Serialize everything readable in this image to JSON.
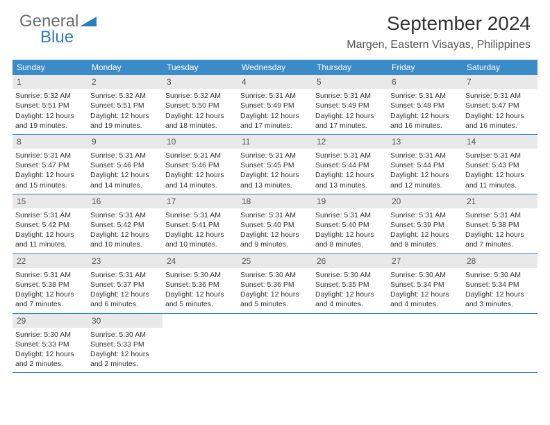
{
  "colors": {
    "header_blue": "#3b8bc9",
    "border_blue": "#2d7cc0",
    "daynum_bg": "#e9e9e9",
    "logo_gray": "#6b6b6b",
    "logo_blue": "#2d7cc0"
  },
  "logo": {
    "line1": "General",
    "line2": "Blue"
  },
  "title": {
    "month": "September 2024",
    "location": "Margen, Eastern Visayas, Philippines"
  },
  "weekdays": [
    "Sunday",
    "Monday",
    "Tuesday",
    "Wednesday",
    "Thursday",
    "Friday",
    "Saturday"
  ],
  "layout": {
    "first_weekday_index": 0,
    "days_in_month": 30,
    "rows": 5
  },
  "days": [
    {
      "n": 1,
      "sunrise": "5:32 AM",
      "sunset": "5:51 PM",
      "daylight": "12 hours and 19 minutes."
    },
    {
      "n": 2,
      "sunrise": "5:32 AM",
      "sunset": "5:51 PM",
      "daylight": "12 hours and 19 minutes."
    },
    {
      "n": 3,
      "sunrise": "5:32 AM",
      "sunset": "5:50 PM",
      "daylight": "12 hours and 18 minutes."
    },
    {
      "n": 4,
      "sunrise": "5:31 AM",
      "sunset": "5:49 PM",
      "daylight": "12 hours and 17 minutes."
    },
    {
      "n": 5,
      "sunrise": "5:31 AM",
      "sunset": "5:49 PM",
      "daylight": "12 hours and 17 minutes."
    },
    {
      "n": 6,
      "sunrise": "5:31 AM",
      "sunset": "5:48 PM",
      "daylight": "12 hours and 16 minutes."
    },
    {
      "n": 7,
      "sunrise": "5:31 AM",
      "sunset": "5:47 PM",
      "daylight": "12 hours and 16 minutes."
    },
    {
      "n": 8,
      "sunrise": "5:31 AM",
      "sunset": "5:47 PM",
      "daylight": "12 hours and 15 minutes."
    },
    {
      "n": 9,
      "sunrise": "5:31 AM",
      "sunset": "5:46 PM",
      "daylight": "12 hours and 14 minutes."
    },
    {
      "n": 10,
      "sunrise": "5:31 AM",
      "sunset": "5:46 PM",
      "daylight": "12 hours and 14 minutes."
    },
    {
      "n": 11,
      "sunrise": "5:31 AM",
      "sunset": "5:45 PM",
      "daylight": "12 hours and 13 minutes."
    },
    {
      "n": 12,
      "sunrise": "5:31 AM",
      "sunset": "5:44 PM",
      "daylight": "12 hours and 13 minutes."
    },
    {
      "n": 13,
      "sunrise": "5:31 AM",
      "sunset": "5:44 PM",
      "daylight": "12 hours and 12 minutes."
    },
    {
      "n": 14,
      "sunrise": "5:31 AM",
      "sunset": "5:43 PM",
      "daylight": "12 hours and 11 minutes."
    },
    {
      "n": 15,
      "sunrise": "5:31 AM",
      "sunset": "5:42 PM",
      "daylight": "12 hours and 11 minutes."
    },
    {
      "n": 16,
      "sunrise": "5:31 AM",
      "sunset": "5:42 PM",
      "daylight": "12 hours and 10 minutes."
    },
    {
      "n": 17,
      "sunrise": "5:31 AM",
      "sunset": "5:41 PM",
      "daylight": "12 hours and 10 minutes."
    },
    {
      "n": 18,
      "sunrise": "5:31 AM",
      "sunset": "5:40 PM",
      "daylight": "12 hours and 9 minutes."
    },
    {
      "n": 19,
      "sunrise": "5:31 AM",
      "sunset": "5:40 PM",
      "daylight": "12 hours and 8 minutes."
    },
    {
      "n": 20,
      "sunrise": "5:31 AM",
      "sunset": "5:39 PM",
      "daylight": "12 hours and 8 minutes."
    },
    {
      "n": 21,
      "sunrise": "5:31 AM",
      "sunset": "5:38 PM",
      "daylight": "12 hours and 7 minutes."
    },
    {
      "n": 22,
      "sunrise": "5:31 AM",
      "sunset": "5:38 PM",
      "daylight": "12 hours and 7 minutes."
    },
    {
      "n": 23,
      "sunrise": "5:31 AM",
      "sunset": "5:37 PM",
      "daylight": "12 hours and 6 minutes."
    },
    {
      "n": 24,
      "sunrise": "5:30 AM",
      "sunset": "5:36 PM",
      "daylight": "12 hours and 5 minutes."
    },
    {
      "n": 25,
      "sunrise": "5:30 AM",
      "sunset": "5:36 PM",
      "daylight": "12 hours and 5 minutes."
    },
    {
      "n": 26,
      "sunrise": "5:30 AM",
      "sunset": "5:35 PM",
      "daylight": "12 hours and 4 minutes."
    },
    {
      "n": 27,
      "sunrise": "5:30 AM",
      "sunset": "5:34 PM",
      "daylight": "12 hours and 4 minutes."
    },
    {
      "n": 28,
      "sunrise": "5:30 AM",
      "sunset": "5:34 PM",
      "daylight": "12 hours and 3 minutes."
    },
    {
      "n": 29,
      "sunrise": "5:30 AM",
      "sunset": "5:33 PM",
      "daylight": "12 hours and 2 minutes."
    },
    {
      "n": 30,
      "sunrise": "5:30 AM",
      "sunset": "5:33 PM",
      "daylight": "12 hours and 2 minutes."
    }
  ],
  "labels": {
    "sunrise": "Sunrise:",
    "sunset": "Sunset:",
    "daylight": "Daylight:"
  }
}
